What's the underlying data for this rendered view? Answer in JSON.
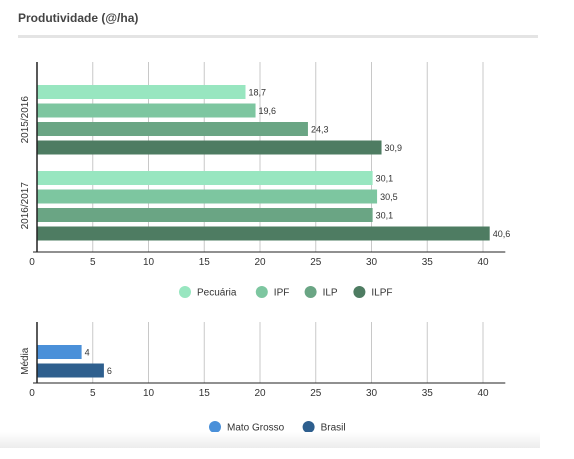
{
  "header": {
    "title": "Produtividade (@/ha)"
  },
  "chart_data": [
    {
      "type": "bar",
      "orientation": "horizontal",
      "categories": [
        "2015/2016",
        "2016/2017"
      ],
      "series": [
        {
          "name": "Pecuária",
          "color": "#98e6c0",
          "values": [
            18.7,
            30.1
          ],
          "labels": [
            "18,7",
            "30,1"
          ]
        },
        {
          "name": "IPF",
          "color": "#7dc6a0",
          "values": [
            19.6,
            30.5
          ],
          "labels": [
            "19,6",
            "30,5"
          ]
        },
        {
          "name": "ILP",
          "color": "#6aa584",
          "values": [
            24.3,
            30.1
          ],
          "labels": [
            "24,3",
            "30,1"
          ]
        },
        {
          "name": "ILPF",
          "color": "#4e7c62",
          "values": [
            30.9,
            40.6
          ],
          "labels": [
            "30,9",
            "40,6"
          ]
        }
      ],
      "xlim": [
        0,
        42
      ],
      "xticks": [
        0,
        5,
        10,
        15,
        20,
        25,
        30,
        35,
        40
      ],
      "grid": true,
      "legend_position": "bottom"
    },
    {
      "type": "bar",
      "orientation": "horizontal",
      "categories": [
        "Média"
      ],
      "series": [
        {
          "name": "Mato Grosso",
          "color": "#4a90d9",
          "values": [
            4
          ],
          "labels": [
            "4"
          ]
        },
        {
          "name": "Brasil",
          "color": "#2e5f8e",
          "values": [
            6
          ],
          "labels": [
            "6"
          ]
        }
      ],
      "xlim": [
        0,
        42
      ],
      "xticks": [
        0,
        5,
        10,
        15,
        20,
        25,
        30,
        35,
        40
      ],
      "grid": true,
      "legend_position": "bottom"
    }
  ]
}
